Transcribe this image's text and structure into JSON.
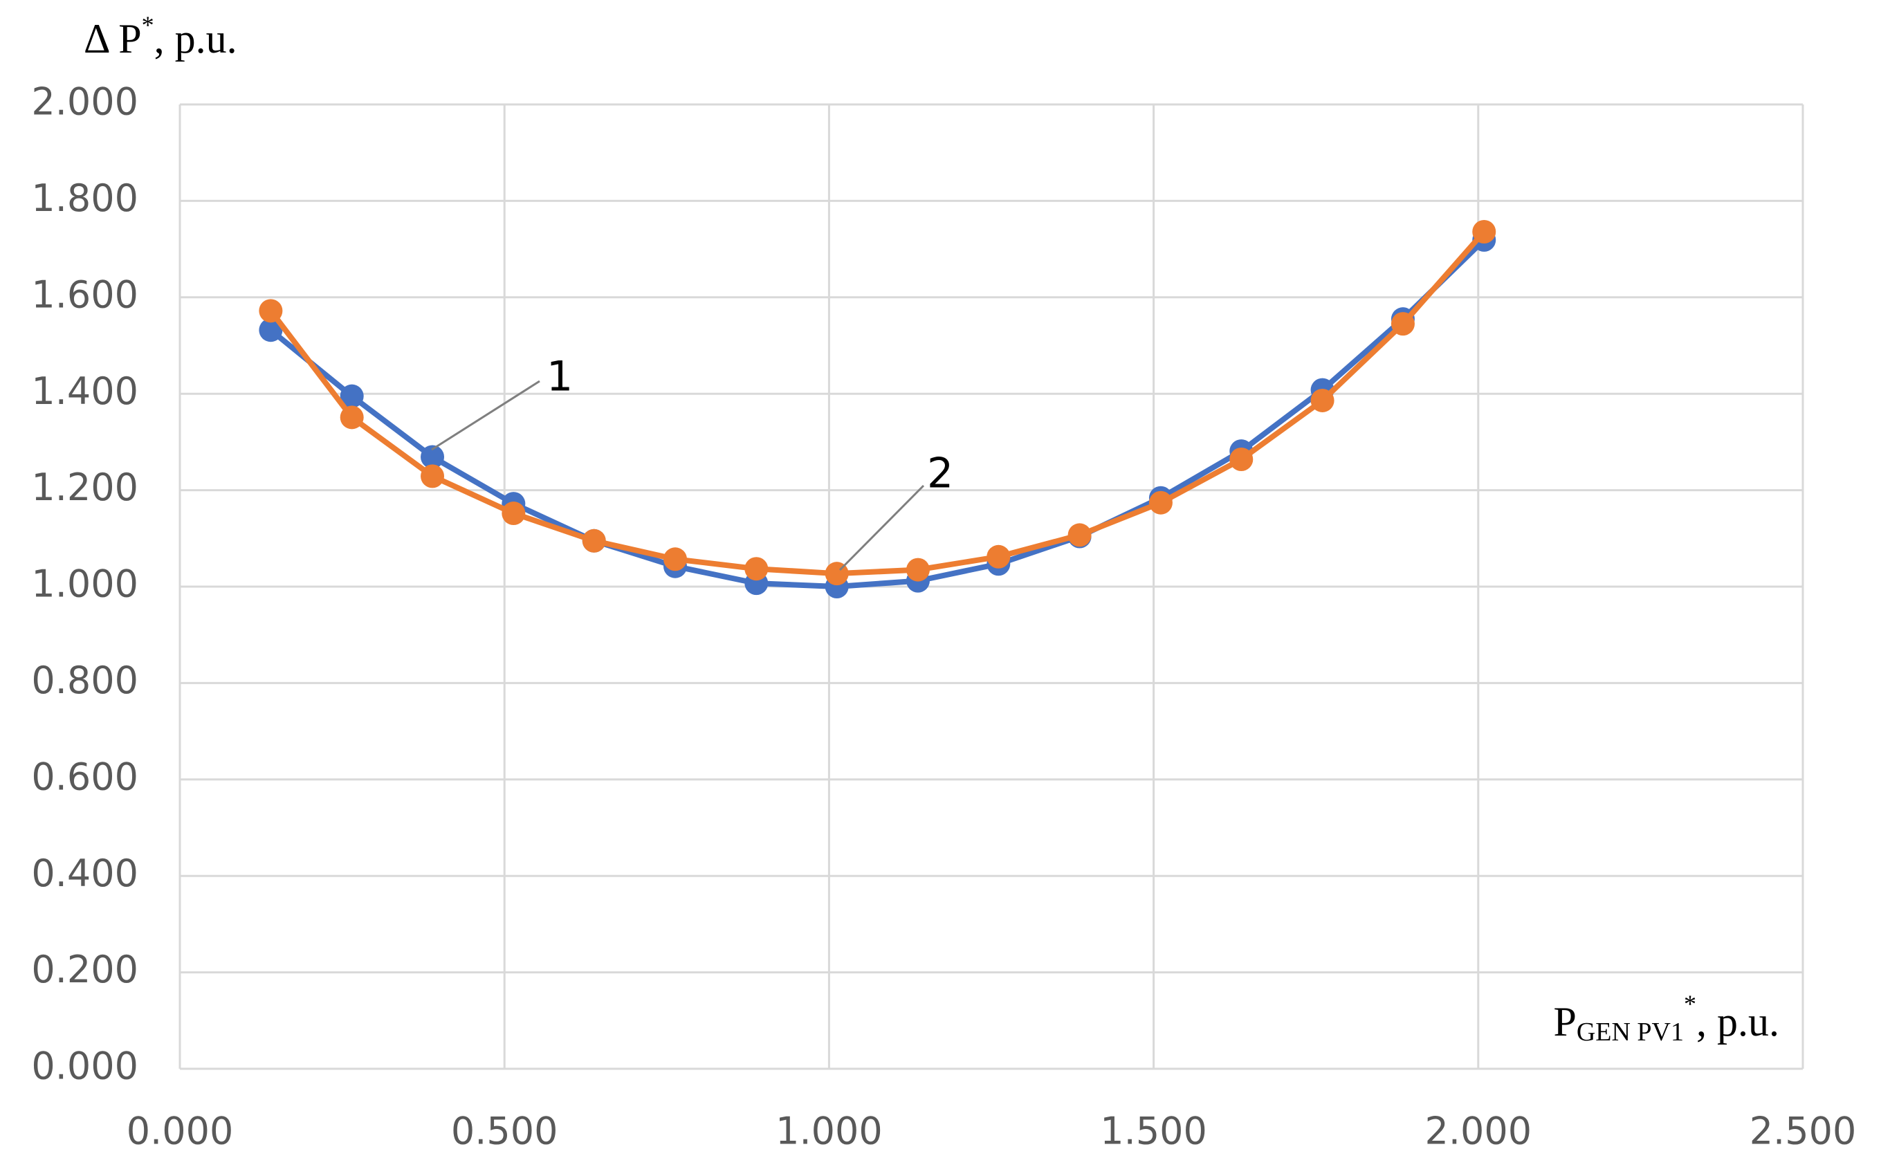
{
  "chart_data": {
    "type": "line",
    "y_label": {
      "base": "Δ P",
      "sup": "*",
      "rest": ", p.u."
    },
    "x_label": {
      "base": "P",
      "sub": "GEN PV1",
      "sup": "*",
      "rest": ", p.u."
    },
    "x": [
      0.14,
      0.265,
      0.389,
      0.514,
      0.638,
      0.763,
      0.888,
      1.012,
      1.137,
      1.261,
      1.386,
      1.511,
      1.635,
      1.76,
      1.884,
      2.009
    ],
    "series": [
      {
        "color": "#4472c4",
        "values": [
          1.532,
          1.395,
          1.269,
          1.172,
          1.095,
          1.042,
          1.007,
          1.0,
          1.012,
          1.047,
          1.104,
          1.184,
          1.281,
          1.408,
          1.555,
          1.719
        ]
      },
      {
        "color": "#ed7d31",
        "values": [
          1.572,
          1.351,
          1.229,
          1.152,
          1.095,
          1.057,
          1.037,
          1.027,
          1.035,
          1.062,
          1.107,
          1.174,
          1.264,
          1.386,
          1.545,
          1.736
        ]
      }
    ],
    "annotations": [
      "1",
      "2"
    ],
    "xlim": [
      0,
      2.5
    ],
    "xticks": [
      {
        "value": 0,
        "label": "0.000"
      },
      {
        "value": 0.5,
        "label": "0.500"
      },
      {
        "value": 1,
        "label": "1.000"
      },
      {
        "value": 1.5,
        "label": "1.500"
      },
      {
        "value": 2,
        "label": "2.000"
      },
      {
        "value": 2.5,
        "label": "2.500"
      }
    ],
    "ylim": [
      0,
      2
    ],
    "yticks": [
      {
        "value": 0,
        "label": "0.000"
      },
      {
        "value": 0.2,
        "label": "0.200"
      },
      {
        "value": 0.4,
        "label": "0.400"
      },
      {
        "value": 0.6,
        "label": "0.600"
      },
      {
        "value": 0.8,
        "label": "0.800"
      },
      {
        "value": 1,
        "label": "1.000"
      },
      {
        "value": 1.2,
        "label": "1.200"
      },
      {
        "value": 1.4,
        "label": "1.400"
      },
      {
        "value": 1.6,
        "label": "1.600"
      },
      {
        "value": 1.8,
        "label": "1.800"
      },
      {
        "value": 2,
        "label": "2.000"
      }
    ],
    "grid": true
  }
}
